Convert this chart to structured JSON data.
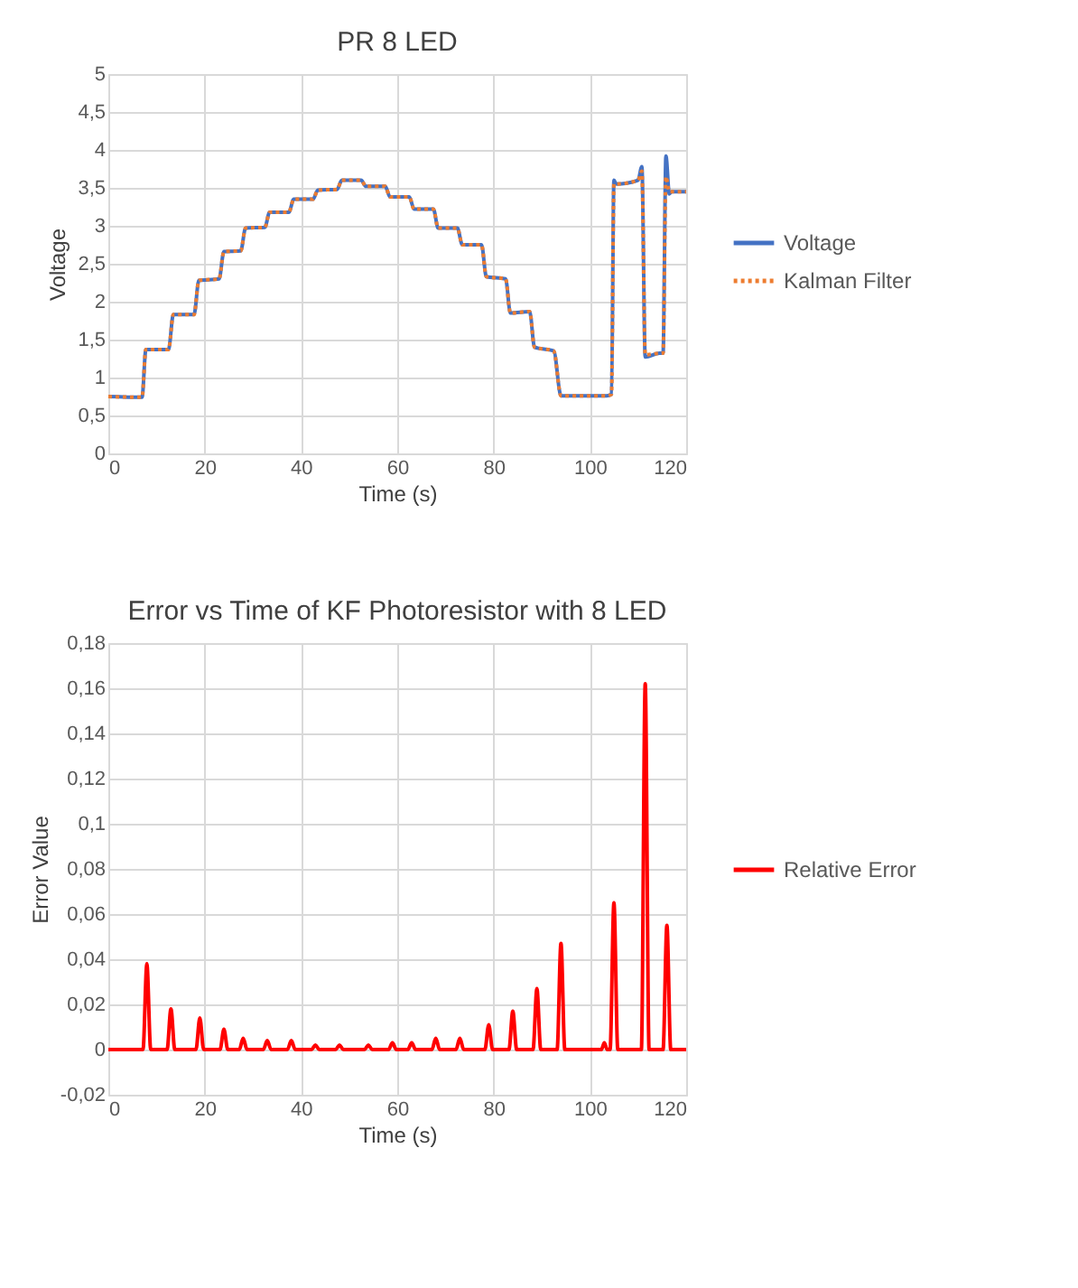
{
  "chart_data": [
    {
      "type": "line",
      "title": "PR 8 LED",
      "xlabel": "Time (s)",
      "ylabel": "Voltage",
      "xlim": [
        0,
        120
      ],
      "xticks": [
        0,
        20,
        40,
        60,
        80,
        100,
        120
      ],
      "ylim": [
        0,
        5
      ],
      "yticks": [
        0,
        {
          "value": 0.5,
          "label": "0,5"
        },
        1,
        {
          "value": 1.5,
          "label": "1,5"
        },
        2,
        {
          "value": 2.5,
          "label": "2,5"
        },
        3,
        {
          "value": 3.5,
          "label": "3,5"
        },
        4,
        {
          "value": 4.5,
          "label": "4,5"
        },
        5
      ],
      "grid": true,
      "legend": "right",
      "x": [
        0,
        7,
        7.8,
        12.5,
        13.5,
        17.8,
        18.8,
        23,
        24,
        27.5,
        28.5,
        32.5,
        33.5,
        37.5,
        38.5,
        42.5,
        43.5,
        47.5,
        48.5,
        52.5,
        53.5,
        57.5,
        58.5,
        62.5,
        63.5,
        67.5,
        68.5,
        72.5,
        73.5,
        77.5,
        78.5,
        82.5,
        83.5,
        87.5,
        88.5,
        92.5,
        94,
        103.5,
        104.5,
        105,
        105.5,
        110,
        110.8,
        111.5,
        114.5,
        115.2,
        115.8,
        116.5,
        117,
        120
      ],
      "series": [
        {
          "name": "Voltage",
          "color": "#4472c4",
          "line_style": "solid",
          "values": [
            0.75,
            0.74,
            1.37,
            1.37,
            1.83,
            1.83,
            2.28,
            2.3,
            2.66,
            2.67,
            2.97,
            2.98,
            3.18,
            3.18,
            3.35,
            3.35,
            3.47,
            3.48,
            3.6,
            3.6,
            3.52,
            3.52,
            3.38,
            3.38,
            3.22,
            3.22,
            2.97,
            2.97,
            2.75,
            2.75,
            2.33,
            2.3,
            1.85,
            1.87,
            1.4,
            1.35,
            0.76,
            0.76,
            0.78,
            3.6,
            3.55,
            3.6,
            3.78,
            1.27,
            1.32,
            1.32,
            3.92,
            3.42,
            3.45,
            3.45
          ]
        },
        {
          "name": "Kalman Filter",
          "color": "#ed7d31",
          "line_style": "dotted",
          "values": [
            0.75,
            0.74,
            1.37,
            1.37,
            1.83,
            1.83,
            2.28,
            2.3,
            2.66,
            2.67,
            2.97,
            2.98,
            3.18,
            3.18,
            3.35,
            3.35,
            3.47,
            3.48,
            3.6,
            3.6,
            3.52,
            3.52,
            3.38,
            3.38,
            3.22,
            3.22,
            2.97,
            2.97,
            2.75,
            2.75,
            2.33,
            2.3,
            1.85,
            1.87,
            1.4,
            1.35,
            0.76,
            0.76,
            0.78,
            3.55,
            3.55,
            3.6,
            3.72,
            1.3,
            1.32,
            1.32,
            3.65,
            3.45,
            3.45,
            3.45
          ]
        }
      ]
    },
    {
      "type": "line",
      "title": "Error vs Time of KF Photoresistor with 8 LED",
      "xlabel": "Time (s)",
      "ylabel": "Error Value",
      "xlim": [
        0,
        120
      ],
      "xticks": [
        0,
        20,
        40,
        60,
        80,
        100,
        120
      ],
      "ylim": [
        -0.02,
        0.18
      ],
      "yticks": [
        {
          "value": -0.02,
          "label": "-0,02"
        },
        0,
        {
          "value": 0.02,
          "label": "0,02"
        },
        {
          "value": 0.04,
          "label": "0,04"
        },
        {
          "value": 0.06,
          "label": "0,06"
        },
        {
          "value": 0.08,
          "label": "0,08"
        },
        {
          "value": 0.1,
          "label": "0,1"
        },
        {
          "value": 0.12,
          "label": "0,12"
        },
        {
          "value": 0.14,
          "label": "0,14"
        },
        {
          "value": 0.16,
          "label": "0,16"
        },
        {
          "value": 0.18,
          "label": "0,18"
        }
      ],
      "grid": true,
      "legend": "right",
      "x": [
        0,
        7.2,
        8,
        8.8,
        12.2,
        13,
        13.8,
        18.2,
        19,
        19.8,
        23.2,
        24,
        24.8,
        27.2,
        28,
        28.8,
        32.2,
        33,
        33.8,
        37.2,
        38,
        38.8,
        42.2,
        43,
        43.8,
        47.2,
        48,
        48.8,
        53.2,
        54,
        54.8,
        58.2,
        59,
        59.8,
        62.2,
        63,
        63.8,
        67.2,
        68,
        68.8,
        72.2,
        73,
        73.8,
        78.2,
        79,
        79.8,
        83.2,
        84,
        84.8,
        88.2,
        89,
        89.8,
        93.2,
        94,
        94.8,
        102.4,
        103,
        103.6,
        104.2,
        105,
        105.8,
        110.7,
        111.5,
        112.3,
        115.2,
        116,
        116.8,
        120
      ],
      "series": [
        {
          "name": "Relative Error",
          "color": "#ff0000",
          "line_style": "solid",
          "values": [
            0,
            0,
            0.038,
            0,
            0,
            0.018,
            0,
            0,
            0.014,
            0,
            0,
            0.009,
            0,
            0,
            0.005,
            0,
            0,
            0.004,
            0,
            0,
            0.004,
            0,
            0,
            0.002,
            0,
            0,
            0.002,
            0,
            0,
            0.002,
            0,
            0,
            0.003,
            0,
            0,
            0.003,
            0,
            0,
            0.005,
            0,
            0,
            0.005,
            0,
            0,
            0.011,
            0,
            0,
            0.017,
            0,
            0,
            0.027,
            0,
            0,
            0.047,
            0,
            0,
            0.003,
            0,
            0,
            0.065,
            0,
            0,
            0.162,
            0,
            0,
            0.055,
            0,
            0
          ]
        }
      ]
    }
  ]
}
